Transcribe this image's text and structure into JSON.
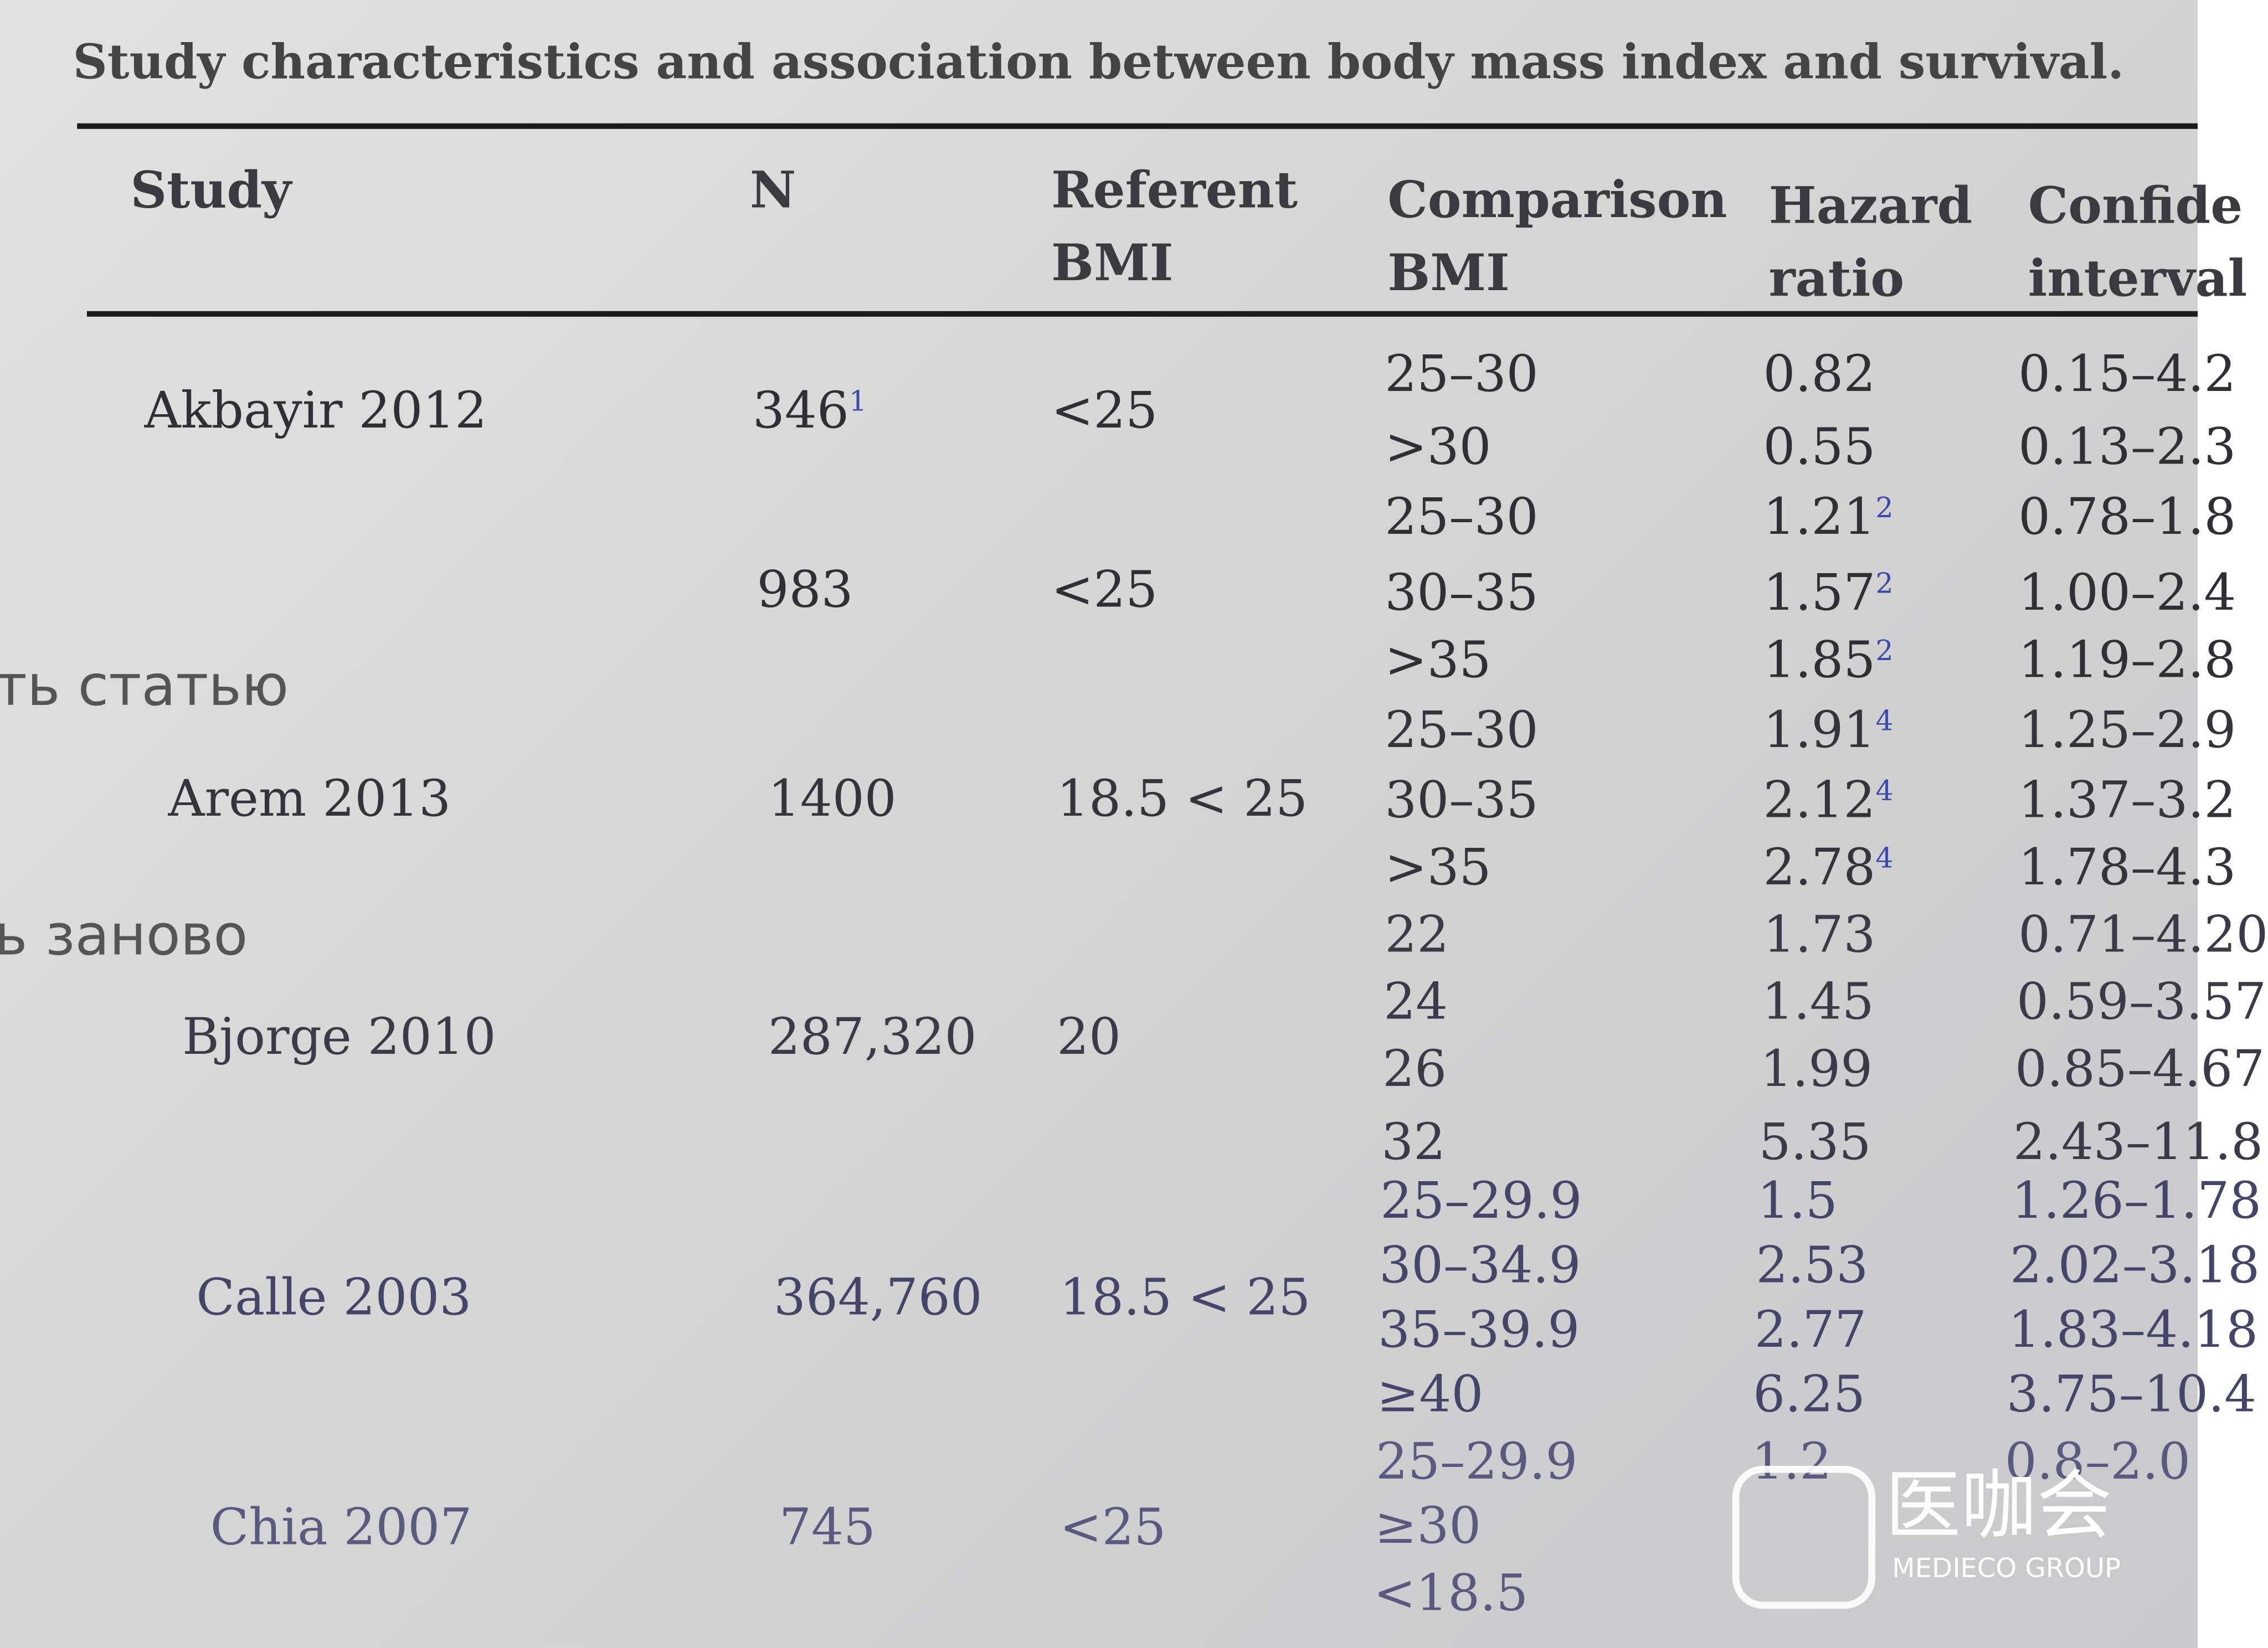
{
  "title": "Study characteristics and association between body mass index and survival.",
  "table": {
    "headers": [
      [
        "Study"
      ],
      [
        "N"
      ],
      [
        "Referent",
        "BMI"
      ],
      [
        "Comparison",
        "BMI"
      ],
      [
        "Hazard",
        "ratio"
      ],
      [
        "Confide",
        "interval"
      ]
    ],
    "groups": [
      {
        "study": "Akbayir 2012",
        "n": "346",
        "n_note": "1",
        "referent": "<25",
        "comparisons": [
          {
            "bmi": "25–30",
            "hr": "0.82",
            "ci": "0.15–4.2"
          },
          {
            "bmi": ">30",
            "hr": "0.55",
            "ci": "0.13–2.3"
          }
        ]
      },
      {
        "n": "983",
        "referent": "<25",
        "comparisons": [
          {
            "bmi": "25–30",
            "hr": "1.21",
            "hr_note": "2",
            "ci": "0.78–1.8"
          },
          {
            "bmi": "30–35",
            "hr": "1.57",
            "hr_note": "2",
            "ci": "1.00–2.4"
          },
          {
            "bmi": ">35",
            "hr": "1.85",
            "hr_note": "2",
            "ci": "1.19–2.8"
          }
        ]
      },
      {
        "study": "Arem 2013",
        "n": "1400",
        "referent": "18.5 < 25",
        "comparisons": [
          {
            "bmi": "25–30",
            "hr": "1.91",
            "hr_note": "4",
            "ci": "1.25–2.9"
          },
          {
            "bmi": "30–35",
            "hr": "2.12",
            "hr_note": "4",
            "ci": "1.37–3.2"
          },
          {
            "bmi": ">35",
            "hr": "2.78",
            "hr_note": "4",
            "ci": "1.78–4.3"
          }
        ]
      },
      {
        "study": "Bjorge 2010",
        "n": "287,320",
        "referent": "20",
        "comparisons": [
          {
            "bmi": "22",
            "hr": "1.73",
            "ci": "0.71–4.20"
          },
          {
            "bmi": "24",
            "hr": "1.45",
            "ci": "0.59–3.57"
          },
          {
            "bmi": "26",
            "hr": "1.99",
            "ci": "0.85–4.67"
          },
          {
            "bmi": "32",
            "hr": "5.35",
            "ci": "2.43–11.8"
          }
        ]
      },
      {
        "study": "Calle 2003",
        "n": "364,760",
        "referent": "18.5 < 25",
        "comparisons": [
          {
            "bmi": "25–29.9",
            "hr": "1.5",
            "ci": "1.26–1.78"
          },
          {
            "bmi": "30–34.9",
            "hr": "2.53",
            "ci": "2.02–3.18"
          },
          {
            "bmi": "35–39.9",
            "hr": "2.77",
            "ci": "1.83–4.18"
          },
          {
            "bmi": "≥40",
            "hr": "6.25",
            "ci": "3.75–10.4"
          }
        ]
      },
      {
        "study": "Chia 2007",
        "n": "745",
        "referent": "<25",
        "comparisons": [
          {
            "bmi": "25–29.9",
            "hr": "1.2",
            "ci": "0.8–2.0"
          },
          {
            "bmi": "≥30"
          },
          {
            "bmi": "<18.5"
          }
        ]
      }
    ]
  },
  "overlay": [
    "ть статью",
    "ь заново"
  ],
  "watermark": {
    "name": "医咖会",
    "subtitle": "MEDIECO GROUP"
  }
}
